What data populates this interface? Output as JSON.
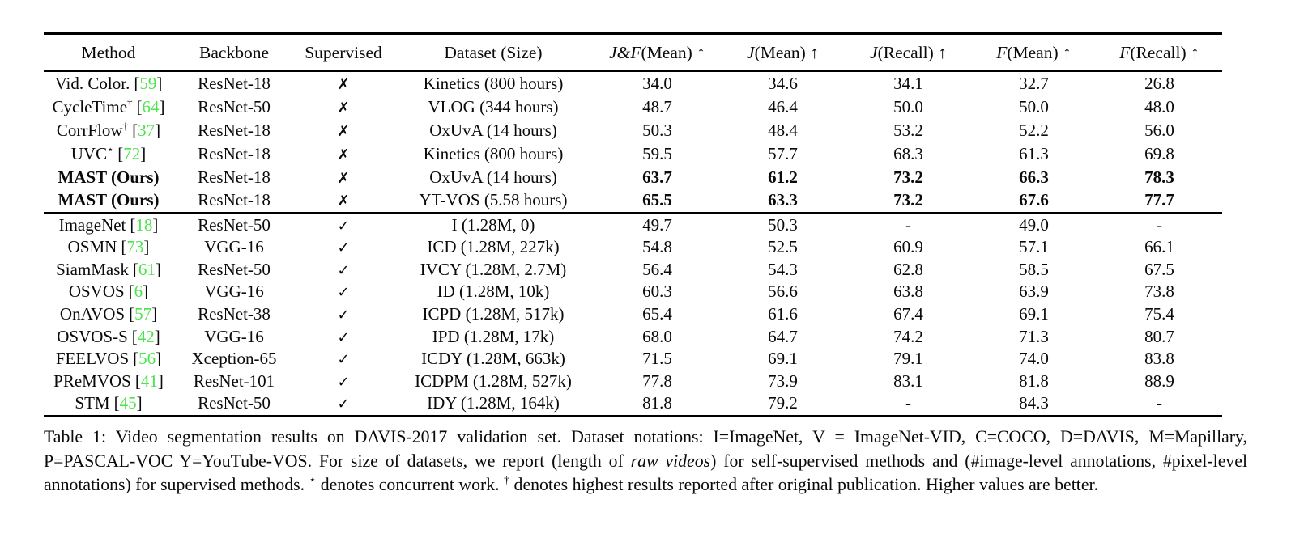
{
  "colors": {
    "citation_green": "#4be44b",
    "text_black": "#0a0a0a",
    "background": "#ffffff"
  },
  "table": {
    "glyphs": {
      "check": "✓",
      "cross": "✗"
    },
    "columns": [
      {
        "math": "",
        "label": "Method"
      },
      {
        "math": "",
        "label": "Backbone"
      },
      {
        "math": "",
        "label": "Supervised"
      },
      {
        "math": "",
        "label": "Dataset (Size)"
      },
      {
        "math": "J&F",
        "label": "(Mean) ↑"
      },
      {
        "math": "J",
        "label": "(Mean) ↑"
      },
      {
        "math": "J",
        "label": "(Recall) ↑"
      },
      {
        "math": "F",
        "label": "(Mean) ↑"
      },
      {
        "math": "F",
        "label": "(Recall) ↑"
      }
    ],
    "sections": [
      {
        "name": "self-supervised",
        "rows": [
          {
            "method": "Vid. Color.",
            "sup": "",
            "cite": "59",
            "bold": false,
            "backbone": "ResNet-18",
            "supervised": false,
            "dataset": "Kinetics (800 hours)",
            "values": [
              "34.0",
              "34.6",
              "34.1",
              "32.7",
              "26.8"
            ]
          },
          {
            "method": "CycleTime",
            "sup": "†",
            "cite": "64",
            "bold": false,
            "backbone": "ResNet-50",
            "supervised": false,
            "dataset": "VLOG (344 hours)",
            "values": [
              "48.7",
              "46.4",
              "50.0",
              "50.0",
              "48.0"
            ]
          },
          {
            "method": "CorrFlow",
            "sup": "†",
            "cite": "37",
            "bold": false,
            "backbone": "ResNet-18",
            "supervised": false,
            "dataset": "OxUvA (14 hours)",
            "values": [
              "50.3",
              "48.4",
              "53.2",
              "52.2",
              "56.0"
            ]
          },
          {
            "method": "UVC",
            "sup": "⋆",
            "cite": "72",
            "bold": false,
            "backbone": "ResNet-18",
            "supervised": false,
            "dataset": "Kinetics (800 hours)",
            "values": [
              "59.5",
              "57.7",
              "68.3",
              "61.3",
              "69.8"
            ]
          },
          {
            "method": "MAST (Ours)",
            "sup": "",
            "cite": "",
            "bold": true,
            "backbone": "ResNet-18",
            "supervised": false,
            "dataset": "OxUvA (14 hours)",
            "values": [
              "63.7",
              "61.2",
              "73.2",
              "66.3",
              "78.3"
            ]
          },
          {
            "method": "MAST (Ours)",
            "sup": "",
            "cite": "",
            "bold": true,
            "backbone": "ResNet-18",
            "supervised": false,
            "dataset": "YT-VOS (5.58 hours)",
            "values": [
              "65.5",
              "63.3",
              "73.2",
              "67.6",
              "77.7"
            ]
          }
        ]
      },
      {
        "name": "supervised",
        "rows": [
          {
            "method": "ImageNet",
            "sup": "",
            "cite": "18",
            "bold": false,
            "backbone": "ResNet-50",
            "supervised": true,
            "dataset": "I (1.28M, 0)",
            "values": [
              "49.7",
              "50.3",
              "-",
              "49.0",
              "-"
            ]
          },
          {
            "method": "OSMN",
            "sup": "",
            "cite": "73",
            "bold": false,
            "backbone": "VGG-16",
            "supervised": true,
            "dataset": "ICD (1.28M, 227k)",
            "values": [
              "54.8",
              "52.5",
              "60.9",
              "57.1",
              "66.1"
            ]
          },
          {
            "method": "SiamMask",
            "sup": "",
            "cite": "61",
            "bold": false,
            "backbone": "ResNet-50",
            "supervised": true,
            "dataset": "IVCY (1.28M, 2.7M)",
            "values": [
              "56.4",
              "54.3",
              "62.8",
              "58.5",
              "67.5"
            ]
          },
          {
            "method": "OSVOS",
            "sup": "",
            "cite": "6",
            "bold": false,
            "backbone": "VGG-16",
            "supervised": true,
            "dataset": "ID (1.28M, 10k)",
            "values": [
              "60.3",
              "56.6",
              "63.8",
              "63.9",
              "73.8"
            ]
          },
          {
            "method": "OnAVOS",
            "sup": "",
            "cite": "57",
            "bold": false,
            "backbone": "ResNet-38",
            "supervised": true,
            "dataset": "ICPD (1.28M, 517k)",
            "values": [
              "65.4",
              "61.6",
              "67.4",
              "69.1",
              "75.4"
            ]
          },
          {
            "method": "OSVOS-S",
            "sup": "",
            "cite": "42",
            "bold": false,
            "backbone": "VGG-16",
            "supervised": true,
            "dataset": "IPD (1.28M, 17k)",
            "values": [
              "68.0",
              "64.7",
              "74.2",
              "71.3",
              "80.7"
            ]
          },
          {
            "method": "FEELVOS",
            "sup": "",
            "cite": "56",
            "bold": false,
            "backbone": "Xception-65",
            "supervised": true,
            "dataset": "ICDY (1.28M, 663k)",
            "values": [
              "71.5",
              "69.1",
              "79.1",
              "74.0",
              "83.8"
            ]
          },
          {
            "method": "PReMVOS",
            "sup": "",
            "cite": "41",
            "bold": false,
            "backbone": "ResNet-101",
            "supervised": true,
            "dataset": "ICDPM (1.28M, 527k)",
            "values": [
              "77.8",
              "73.9",
              "83.1",
              "81.8",
              "88.9"
            ]
          },
          {
            "method": "STM",
            "sup": "",
            "cite": "45",
            "bold": false,
            "backbone": "ResNet-50",
            "supervised": true,
            "dataset": "IDY (1.28M, 164k)",
            "values": [
              "81.8",
              "79.2",
              "-",
              "84.3",
              "-"
            ]
          }
        ]
      }
    ]
  },
  "caption": {
    "segments": [
      {
        "text": "Table 1:  Video segmentation results on DAVIS-2017 validation set.  Dataset notations:  I=ImageNet, V = ImageNet-VID, C=COCO, D=DAVIS, M=Mapillary, P=PASCAL-VOC Y=YouTube-VOS. For size of datasets, we report (length of ",
        "style": "normal"
      },
      {
        "text": "raw videos",
        "style": "italic"
      },
      {
        "text": ") for self-supervised methods and (#image-level annotations, #pixel-level annotations) for supervised methods. ",
        "style": "normal"
      },
      {
        "text": "⋆",
        "style": "sup"
      },
      {
        "text": " denotes concurrent work. ",
        "style": "normal"
      },
      {
        "text": "†",
        "style": "sup"
      },
      {
        "text": " denotes highest results reported after original publication. Higher values are better.",
        "style": "normal"
      }
    ]
  }
}
